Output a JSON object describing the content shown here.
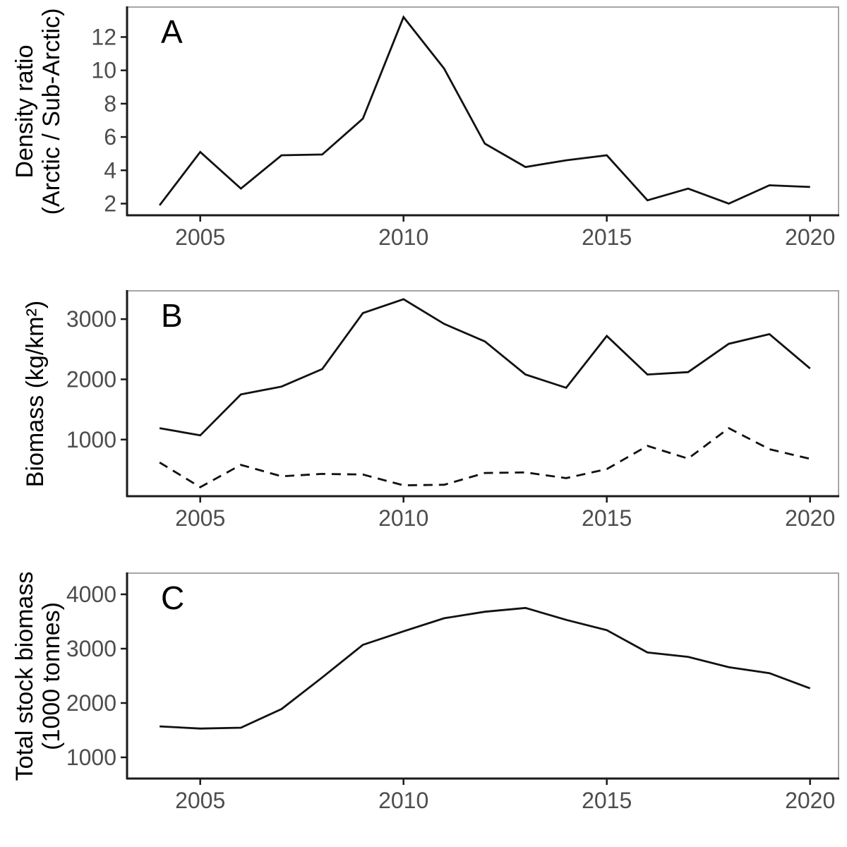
{
  "figure": {
    "background": "#ffffff",
    "line_color": "#111111",
    "axis_line_color": "#1a1a1a",
    "panel_border_color": "#a6a6a6",
    "tick_label_color": "#4d4d4d"
  },
  "chart_data": [
    {
      "id": "panel-a",
      "type": "line",
      "label": "A",
      "ylabel_lines": [
        "Density ratio",
        "(Arctic / Sub-Arctic)"
      ],
      "x": [
        2004,
        2005,
        2006,
        2007,
        2008,
        2009,
        2010,
        2011,
        2012,
        2013,
        2014,
        2015,
        2016,
        2017,
        2018,
        2019,
        2020
      ],
      "series": [
        {
          "name": "density-ratio",
          "style": "solid",
          "values": [
            1.9,
            5.1,
            2.9,
            4.9,
            4.95,
            7.1,
            13.2,
            10.1,
            5.6,
            4.2,
            4.6,
            4.9,
            2.2,
            2.9,
            2.0,
            3.1,
            3.0
          ]
        }
      ],
      "xticks": [
        2005,
        2010,
        2015,
        2020
      ],
      "yticks": [
        2,
        4,
        6,
        8,
        10,
        12
      ],
      "xlim": [
        2003.2,
        2020.7
      ],
      "ylim": [
        1.3,
        13.8
      ],
      "grid": false,
      "legend": null
    },
    {
      "id": "panel-b",
      "type": "line",
      "label": "B",
      "ylabel_lines": [
        "Biomass (kg/km²)"
      ],
      "x": [
        2004,
        2005,
        2006,
        2007,
        2008,
        2009,
        2010,
        2011,
        2012,
        2013,
        2014,
        2015,
        2016,
        2017,
        2018,
        2019,
        2020
      ],
      "series": [
        {
          "name": "biomass-solid",
          "style": "solid",
          "values": [
            1190,
            1070,
            1750,
            1880,
            2170,
            3100,
            3330,
            2920,
            2630,
            2080,
            1860,
            2720,
            2080,
            2120,
            2590,
            2750,
            2180
          ]
        },
        {
          "name": "biomass-dashed",
          "style": "dashed",
          "values": [
            620,
            210,
            580,
            390,
            430,
            420,
            240,
            250,
            445,
            455,
            360,
            510,
            895,
            685,
            1190,
            840,
            680
          ]
        }
      ],
      "xticks": [
        2005,
        2010,
        2015,
        2020
      ],
      "yticks": [
        1000,
        2000,
        3000
      ],
      "xlim": [
        2003.2,
        2020.7
      ],
      "ylim": [
        60,
        3470
      ],
      "grid": false,
      "legend": null
    },
    {
      "id": "panel-c",
      "type": "line",
      "label": "C",
      "ylabel_lines": [
        "Total stock biomass",
        "(1000 tonnes)"
      ],
      "x": [
        2004,
        2005,
        2006,
        2007,
        2008,
        2009,
        2010,
        2011,
        2012,
        2013,
        2014,
        2015,
        2016,
        2017,
        2018,
        2019,
        2020
      ],
      "series": [
        {
          "name": "total-stock-biomass",
          "style": "solid",
          "values": [
            1570,
            1530,
            1545,
            1890,
            2470,
            3070,
            3320,
            3560,
            3680,
            3750,
            3530,
            3340,
            2930,
            2850,
            2660,
            2550,
            2270
          ]
        }
      ],
      "xticks": [
        2005,
        2010,
        2015,
        2020
      ],
      "yticks": [
        1000,
        2000,
        3000,
        4000
      ],
      "xlim": [
        2003.2,
        2020.7
      ],
      "ylim": [
        610,
        4390
      ],
      "grid": false,
      "legend": null
    }
  ]
}
